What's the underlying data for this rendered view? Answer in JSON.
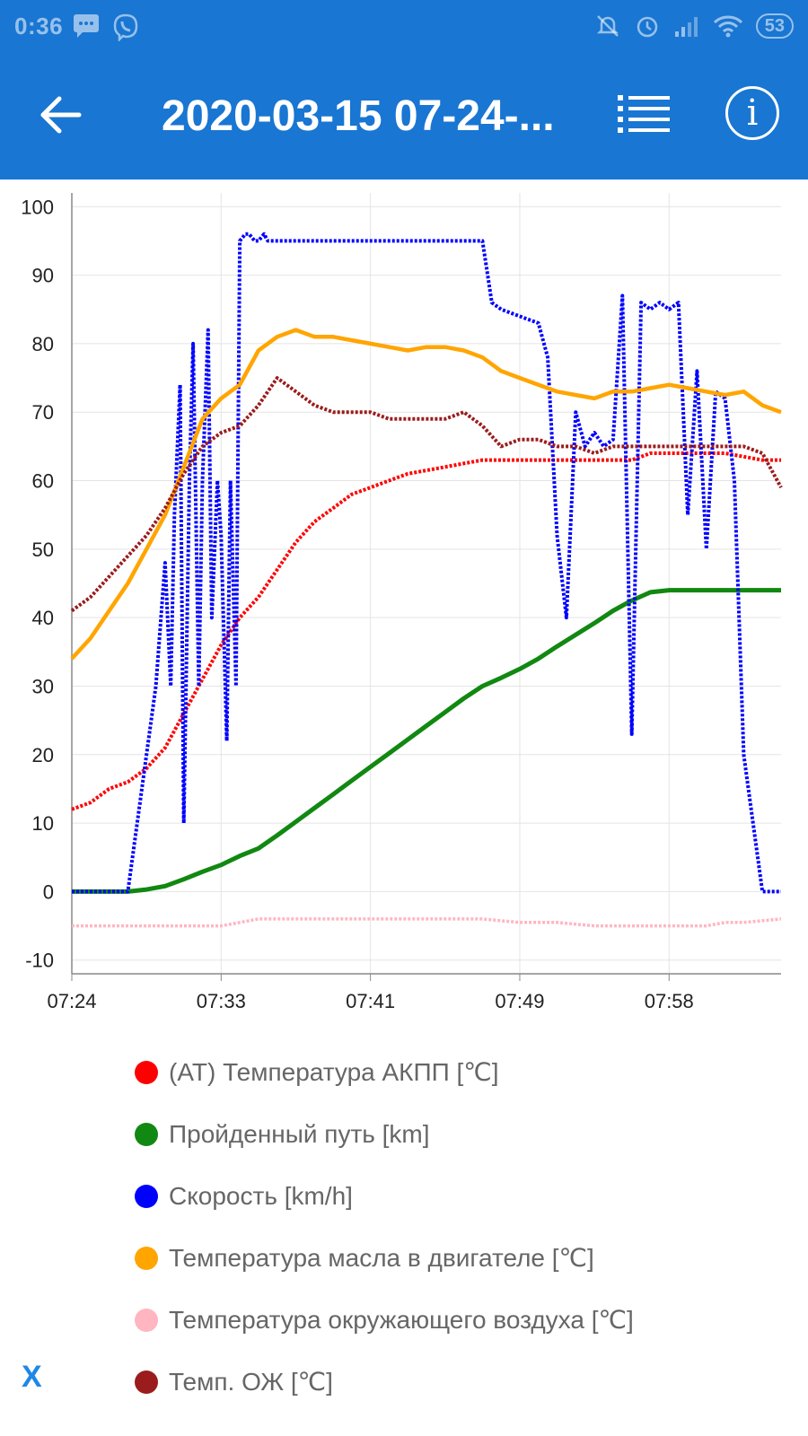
{
  "status_bar": {
    "time": "0:36",
    "battery": "53",
    "icons_left": [
      "message-icon",
      "viber-icon"
    ],
    "icons_right": [
      "mute-icon",
      "alarm-icon",
      "signal-icon",
      "wifi-icon"
    ]
  },
  "app_bar": {
    "title": "2020-03-15 07-24-...",
    "background_color": "#1976d2"
  },
  "close_label": "X",
  "chart_data": {
    "type": "line",
    "title": "",
    "xlabel": "",
    "ylabel": "",
    "x_ticks": [
      "07:24",
      "07:33",
      "07:41",
      "07:49",
      "07:58"
    ],
    "x_tick_minutes": [
      0,
      8,
      16,
      24,
      32
    ],
    "x_range": [
      0,
      38
    ],
    "y_ticks": [
      100,
      90,
      80,
      70,
      60,
      50,
      40,
      30,
      20,
      10,
      0,
      -10
    ],
    "ylim": [
      -12,
      102
    ],
    "grid": true,
    "legend_position": "bottom",
    "series": [
      {
        "name": "(AT) Температура АКПП [℃]",
        "color": "#ff0000",
        "x": [
          0,
          1,
          2,
          3,
          4,
          5,
          6,
          7,
          8,
          9,
          10,
          11,
          12,
          13,
          14,
          15,
          16,
          17,
          18,
          19,
          20,
          21,
          22,
          23,
          24,
          25,
          26,
          27,
          28,
          29,
          30,
          31,
          32,
          33,
          34,
          35,
          36,
          37,
          38
        ],
        "values": [
          12,
          13,
          15,
          16,
          18,
          21,
          26,
          31,
          36,
          40,
          43,
          47,
          51,
          54,
          56,
          58,
          59,
          60,
          61,
          61.5,
          62,
          62.5,
          63,
          63,
          63,
          63,
          63,
          63,
          63,
          63,
          63,
          64,
          64,
          64,
          64,
          64,
          63.5,
          63,
          63
        ]
      },
      {
        "name": "Пройденный путь [km]",
        "color": "#118811",
        "x": [
          0,
          3,
          4,
          5,
          6,
          7,
          8,
          9,
          10,
          11,
          12,
          13,
          14,
          15,
          16,
          17,
          18,
          19,
          20,
          21,
          22,
          23,
          24,
          25,
          26,
          27,
          28,
          29,
          30,
          31,
          32,
          33,
          34,
          35,
          36,
          37,
          38
        ],
        "values": [
          0,
          0,
          0.3,
          0.8,
          1.8,
          2.9,
          3.9,
          5.2,
          6.3,
          8.2,
          10.2,
          12.2,
          14.2,
          16.2,
          18.2,
          20.2,
          22.2,
          24.2,
          26.2,
          28.2,
          30,
          31.2,
          32.5,
          34,
          35.8,
          37.5,
          39.2,
          41,
          42.5,
          43.7,
          44,
          44,
          44,
          44,
          44,
          44,
          44
        ]
      },
      {
        "name": "Скорость [km/h]",
        "color": "#0000ff",
        "x": [
          0,
          1,
          2,
          3,
          3.5,
          4,
          4.5,
          5,
          5.3,
          5.5,
          5.8,
          6,
          6.3,
          6.5,
          6.8,
          7,
          7.3,
          7.5,
          7.8,
          8,
          8.3,
          8.5,
          8.8,
          9,
          9.3,
          9.5,
          9.8,
          10,
          10.3,
          10.5,
          10.8,
          11,
          11.3,
          11.5,
          11.8,
          12,
          13,
          14,
          15,
          16,
          17,
          18,
          19,
          20,
          21,
          22,
          22.5,
          23,
          24,
          25,
          25.5,
          26,
          26.5,
          27,
          27.5,
          28,
          28.5,
          29,
          29.5,
          30,
          30.5,
          31,
          31.5,
          32,
          32.5,
          33,
          33.5,
          34,
          34.5,
          35,
          35.5,
          36,
          36.5,
          37,
          37.5,
          38
        ],
        "values": [
          0,
          0,
          0,
          0,
          10,
          20,
          30,
          48,
          30,
          55,
          74,
          10,
          60,
          80,
          30,
          60,
          82,
          40,
          60,
          52,
          22,
          60,
          30,
          95,
          96,
          96,
          95,
          95,
          96,
          95,
          95,
          95,
          95,
          95,
          95,
          95,
          95,
          95,
          95,
          95,
          95,
          95,
          95,
          95,
          95,
          95,
          86,
          85,
          84,
          83,
          78,
          52,
          40,
          70,
          65,
          67,
          65,
          66,
          87,
          23,
          86,
          85,
          86,
          85,
          86,
          55,
          76,
          50,
          73,
          72,
          60,
          20,
          10,
          0,
          0,
          0
        ]
      },
      {
        "name": "Температура масла в двигателе [℃]",
        "color": "#ffa500",
        "x": [
          0,
          1,
          2,
          3,
          4,
          5,
          6,
          7,
          8,
          9,
          10,
          11,
          12,
          13,
          14,
          15,
          16,
          17,
          18,
          19,
          20,
          21,
          22,
          23,
          24,
          25,
          26,
          27,
          28,
          29,
          30,
          31,
          32,
          33,
          34,
          35,
          36,
          37,
          38
        ],
        "values": [
          34,
          37,
          41,
          45,
          50,
          55,
          62,
          69,
          72,
          74,
          79,
          81,
          82,
          81,
          81,
          80.5,
          80,
          79.5,
          79,
          79.5,
          79.5,
          79,
          78,
          76,
          75,
          74,
          73,
          72.5,
          72,
          73,
          73,
          73.5,
          74,
          73.5,
          73,
          72.5,
          73,
          71,
          70
        ]
      },
      {
        "name": "Температура окружающего воздуха [℃]",
        "color": "#ffb6c1",
        "x": [
          0,
          2,
          4,
          6,
          8,
          9,
          10,
          12,
          14,
          16,
          18,
          20,
          22,
          24,
          26,
          28,
          30,
          32,
          34,
          35,
          36,
          38
        ],
        "values": [
          -5,
          -5,
          -5,
          -5,
          -5,
          -4.5,
          -4,
          -4,
          -4,
          -4,
          -4,
          -4,
          -4,
          -4.5,
          -4.5,
          -5,
          -5,
          -5,
          -5,
          -4.5,
          -4.5,
          -4
        ]
      },
      {
        "name": "Темп. ОЖ [℃]",
        "color": "#9b1c1c",
        "x": [
          0,
          1,
          2,
          3,
          4,
          5,
          6,
          7,
          8,
          9,
          10,
          11,
          12,
          13,
          14,
          15,
          16,
          17,
          18,
          19,
          20,
          21,
          22,
          23,
          24,
          25,
          26,
          27,
          28,
          29,
          30,
          31,
          32,
          33,
          34,
          35,
          36,
          37,
          38
        ],
        "values": [
          41,
          43,
          46,
          49,
          52,
          56,
          61,
          65,
          67,
          68,
          71,
          75,
          73,
          71,
          70,
          70,
          70,
          69,
          69,
          69,
          69,
          70,
          68,
          65,
          66,
          66,
          65,
          65,
          64,
          65,
          65,
          65,
          65,
          65,
          65,
          65,
          65,
          64,
          59
        ]
      }
    ]
  }
}
